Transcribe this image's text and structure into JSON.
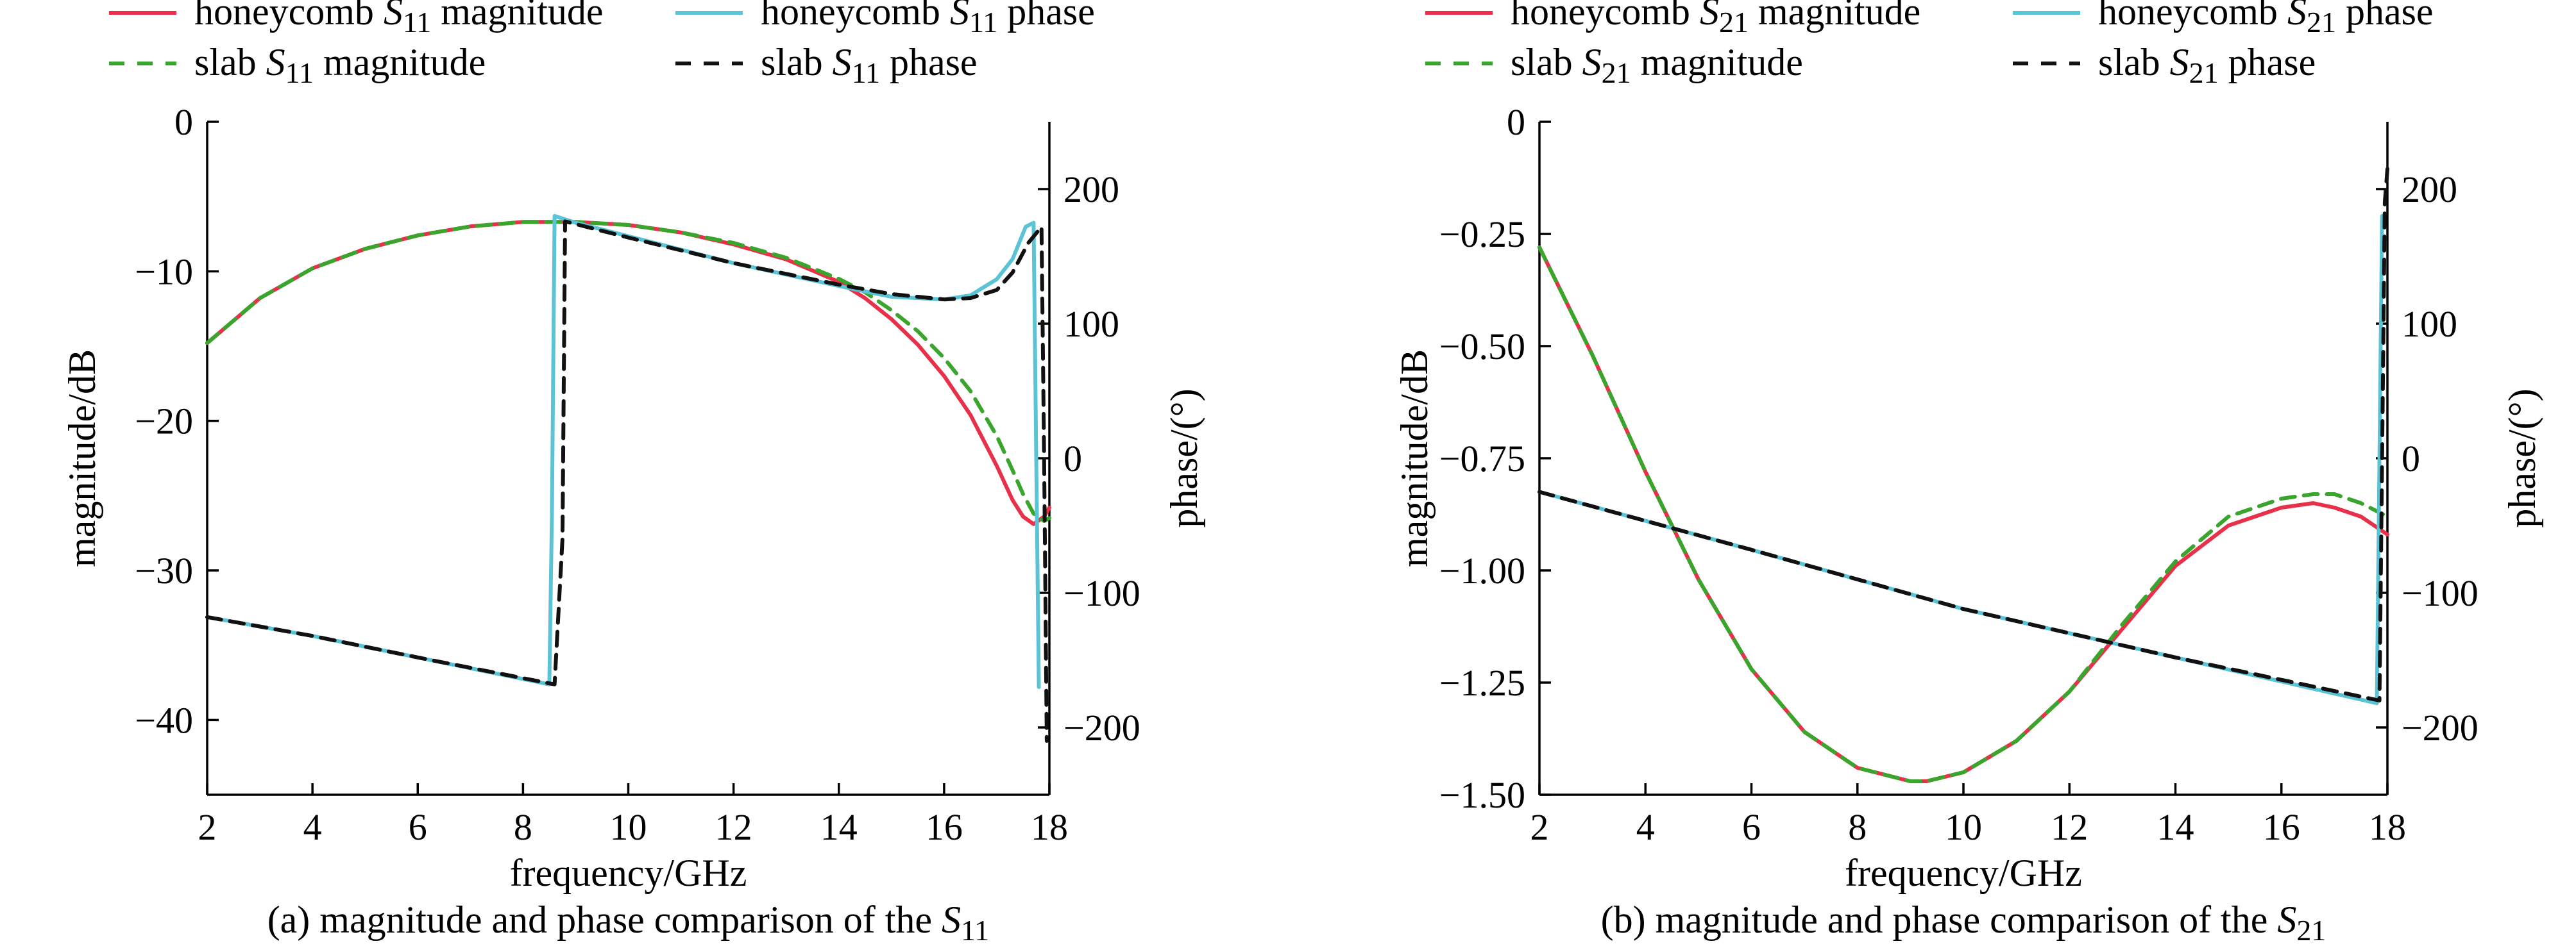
{
  "colors": {
    "honeycomb_magnitude": "#e8304a",
    "honeycomb_phase": "#5bc3d6",
    "slab_magnitude": "#3aa52c",
    "slab_phase": "#111111"
  },
  "chart_data": [
    {
      "type": "line",
      "id": "a",
      "caption": {
        "text": "(a) magnitude and phase comparison of the ",
        "symbol": "S",
        "sub": "11"
      },
      "xlabel": "frequency/GHz",
      "ylabel": "magnitude/dB",
      "y2label": "phase/(°)",
      "xlim": [
        2,
        18
      ],
      "ylim": [
        -45,
        0
      ],
      "y2lim": [
        -250,
        250
      ],
      "xticks": [
        2,
        4,
        6,
        8,
        10,
        12,
        14,
        16,
        18
      ],
      "xtick_labels": [
        "2",
        "4",
        "6",
        "8",
        "10",
        "12",
        "14",
        "16",
        "18"
      ],
      "yticks": [
        0,
        -10,
        -20,
        -30,
        -40
      ],
      "ytick_labels": [
        "0",
        "−10",
        "−20",
        "−30",
        "−40"
      ],
      "y2ticks": [
        200,
        100,
        0,
        -100,
        -200
      ],
      "y2tick_labels": [
        "200",
        "100",
        "0",
        "−100",
        "−200"
      ],
      "legend": [
        {
          "pre": "honeycomb ",
          "sym": "S",
          "sub": "11",
          "post": " magnitude",
          "style": "solid",
          "color": "#e8304a"
        },
        {
          "pre": "honeycomb ",
          "sym": "S",
          "sub": "11",
          "post": " phase",
          "style": "solid",
          "color": "#5bc3d6"
        },
        {
          "pre": "slab ",
          "sym": "S",
          "sub": "11",
          "post": " magnitude",
          "style": "dashed",
          "color": "#3aa52c"
        },
        {
          "pre": "slab ",
          "sym": "S",
          "sub": "11",
          "post": " phase",
          "style": "dashed",
          "color": "#111111"
        }
      ],
      "series": [
        {
          "name": "honeycomb S11 magnitude",
          "axis": "left",
          "style": "solid",
          "color": "#e8304a",
          "x": [
            2,
            3,
            4,
            5,
            6,
            7,
            8,
            9,
            10,
            11,
            12,
            13,
            14,
            14.5,
            15,
            15.5,
            16,
            16.5,
            17,
            17.3,
            17.5,
            17.7,
            17.9,
            18
          ],
          "y": [
            -14.8,
            -11.8,
            -9.8,
            -8.5,
            -7.6,
            -7.0,
            -6.7,
            -6.7,
            -6.9,
            -7.4,
            -8.2,
            -9.2,
            -10.7,
            -11.8,
            -13.2,
            -14.9,
            -17.0,
            -19.6,
            -23.0,
            -25.3,
            -26.4,
            -26.9,
            -26.4,
            -25.8
          ]
        },
        {
          "name": "slab S11 magnitude",
          "axis": "left",
          "style": "dashed",
          "color": "#3aa52c",
          "x": [
            2,
            3,
            4,
            5,
            6,
            7,
            8,
            9,
            10,
            11,
            12,
            13,
            14,
            14.5,
            15,
            15.5,
            16,
            16.5,
            17,
            17.3,
            17.5,
            17.7,
            17.9,
            18
          ],
          "y": [
            -14.8,
            -11.8,
            -9.8,
            -8.5,
            -7.6,
            -7.0,
            -6.7,
            -6.7,
            -6.9,
            -7.4,
            -8.1,
            -9.1,
            -10.5,
            -11.4,
            -12.6,
            -14.0,
            -15.8,
            -18.0,
            -21.0,
            -23.3,
            -24.9,
            -26.2,
            -26.7,
            -26.5
          ]
        },
        {
          "name": "honeycomb S11 phase",
          "axis": "right",
          "style": "solid",
          "color": "#5bc3d6",
          "x": [
            2,
            4,
            6,
            8.5,
            8.55,
            8.6,
            9,
            10,
            12,
            14,
            15,
            16,
            16.5,
            17,
            17.3,
            17.55,
            17.7,
            17.75,
            17.8
          ],
          "y": [
            -118,
            -132,
            -148,
            -168,
            -40,
            180,
            175,
            165,
            145,
            128,
            120,
            118,
            121,
            133,
            148,
            172,
            175,
            0,
            -170
          ]
        },
        {
          "name": "slab S11 phase",
          "axis": "right",
          "style": "dashed",
          "color": "#111111",
          "x": [
            2,
            4,
            6,
            8.6,
            8.75,
            8.8,
            9,
            10,
            12,
            14,
            15,
            16,
            16.5,
            17,
            17.3,
            17.6,
            17.85,
            17.9,
            17.95
          ],
          "y": [
            -118,
            -132,
            -148,
            -168,
            -60,
            176,
            174,
            164,
            145,
            129,
            122,
            118,
            119,
            125,
            138,
            160,
            172,
            0,
            -210
          ]
        }
      ]
    },
    {
      "type": "line",
      "id": "b",
      "caption": {
        "text": "(b) magnitude and phase comparison of the ",
        "symbol": "S",
        "sub": "21"
      },
      "xlabel": "frequency/GHz",
      "ylabel": "magnitude/dB",
      "y2label": "phase/(°)",
      "xlim": [
        2,
        18
      ],
      "ylim": [
        -1.5,
        0
      ],
      "y2lim": [
        -250,
        250
      ],
      "xticks": [
        2,
        4,
        6,
        8,
        10,
        12,
        14,
        16,
        18
      ],
      "xtick_labels": [
        "2",
        "4",
        "6",
        "8",
        "10",
        "12",
        "14",
        "16",
        "18"
      ],
      "yticks": [
        0,
        -0.25,
        -0.5,
        -0.75,
        -1.0,
        -1.25,
        -1.5
      ],
      "ytick_labels": [
        "0",
        "−0.25",
        "−0.50",
        "−0.75",
        "−1.00",
        "−1.25",
        "−1.50"
      ],
      "y2ticks": [
        200,
        100,
        0,
        -100,
        -200
      ],
      "y2tick_labels": [
        "200",
        "100",
        "0",
        "−100",
        "−200"
      ],
      "legend": [
        {
          "pre": "honeycomb ",
          "sym": "S",
          "sub": "21",
          "post": " magnitude",
          "style": "solid",
          "color": "#e8304a"
        },
        {
          "pre": "honeycomb ",
          "sym": "S",
          "sub": "21",
          "post": " phase",
          "style": "solid",
          "color": "#5bc3d6"
        },
        {
          "pre": "slab ",
          "sym": "S",
          "sub": "21",
          "post": " magnitude",
          "style": "dashed",
          "color": "#3aa52c"
        },
        {
          "pre": "slab ",
          "sym": "S",
          "sub": "21",
          "post": " phase",
          "style": "dashed",
          "color": "#111111"
        }
      ],
      "series": [
        {
          "name": "honeycomb S21 magnitude",
          "axis": "left",
          "style": "solid",
          "color": "#e8304a",
          "x": [
            2,
            3,
            4,
            5,
            6,
            7,
            8,
            9,
            9.3,
            10,
            11,
            12,
            13,
            14,
            15,
            16,
            16.6,
            17,
            17.5,
            18
          ],
          "y": [
            -0.28,
            -0.52,
            -0.78,
            -1.02,
            -1.22,
            -1.36,
            -1.44,
            -1.47,
            -1.47,
            -1.45,
            -1.38,
            -1.27,
            -1.13,
            -0.99,
            -0.9,
            -0.86,
            -0.85,
            -0.86,
            -0.88,
            -0.92
          ]
        },
        {
          "name": "slab S21 magnitude",
          "axis": "left",
          "style": "dashed",
          "color": "#3aa52c",
          "x": [
            2,
            3,
            4,
            5,
            6,
            7,
            8,
            9,
            9.3,
            10,
            11,
            12,
            13,
            14,
            15,
            16,
            16.6,
            17,
            17.5,
            18
          ],
          "y": [
            -0.28,
            -0.52,
            -0.78,
            -1.02,
            -1.22,
            -1.36,
            -1.44,
            -1.47,
            -1.47,
            -1.45,
            -1.38,
            -1.27,
            -1.12,
            -0.98,
            -0.88,
            -0.84,
            -0.83,
            -0.83,
            -0.85,
            -0.88
          ]
        },
        {
          "name": "honeycomb S21 phase",
          "axis": "right",
          "style": "solid",
          "color": "#5bc3d6",
          "x": [
            2,
            6,
            10,
            14,
            17.8,
            17.85,
            17.9
          ],
          "y": [
            -25,
            -68,
            -112,
            -148,
            -182,
            0,
            180
          ]
        },
        {
          "name": "slab S21 phase",
          "axis": "right",
          "style": "dashed",
          "color": "#111111",
          "x": [
            2,
            6,
            10,
            14,
            17.85,
            17.9,
            17.95,
            18
          ],
          "y": [
            -25,
            -68,
            -112,
            -148,
            -180,
            0,
            190,
            215
          ]
        }
      ]
    }
  ]
}
